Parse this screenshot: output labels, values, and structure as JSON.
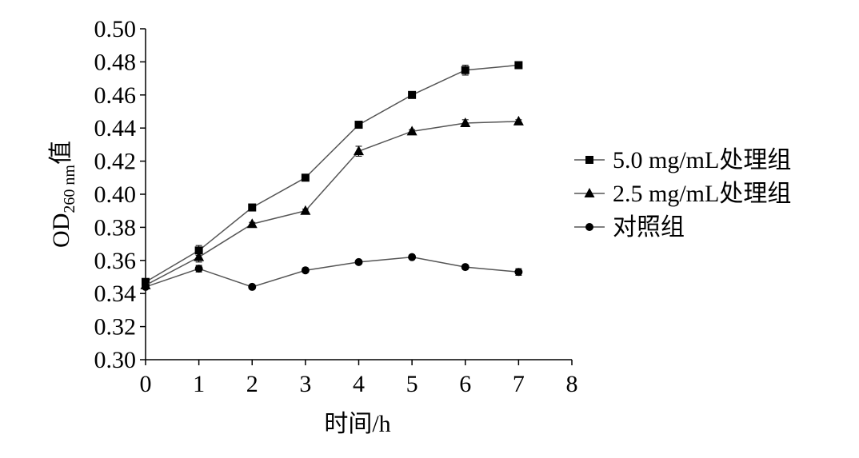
{
  "chart_data": {
    "type": "line",
    "title": "",
    "xlabel": "时间/h",
    "ylabel": {
      "prefix": "OD",
      "subscript": "260 nm",
      "suffix": "值"
    },
    "xlim": [
      0,
      8
    ],
    "ylim": [
      0.3,
      0.5
    ],
    "x_ticks": [
      "0",
      "1",
      "2",
      "3",
      "4",
      "5",
      "6",
      "7",
      "8"
    ],
    "y_ticks": [
      "0.30",
      "0.32",
      "0.34",
      "0.36",
      "0.38",
      "0.40",
      "0.42",
      "0.44",
      "0.46",
      "0.48",
      "0.50"
    ],
    "grid": false,
    "legend_position": "right",
    "x": [
      0,
      1,
      2,
      3,
      4,
      5,
      6,
      7
    ],
    "series": [
      {
        "name": "5.0 mg/mL处理组",
        "marker": "square",
        "values": [
          0.347,
          0.366,
          0.392,
          0.41,
          0.442,
          0.46,
          0.475,
          0.478
        ],
        "errors": [
          0.001,
          0.003,
          0.001,
          0.001,
          0.001,
          0.001,
          0.003,
          0.002
        ]
      },
      {
        "name": "2.5 mg/mL处理组",
        "marker": "triangle",
        "values": [
          0.345,
          0.362,
          0.382,
          0.39,
          0.426,
          0.438,
          0.443,
          0.444
        ],
        "errors": [
          0.001,
          0.003,
          0.001,
          0.001,
          0.003,
          0.001,
          0.002,
          0.001
        ]
      },
      {
        "name": "对照组",
        "marker": "circle",
        "values": [
          0.344,
          0.355,
          0.344,
          0.354,
          0.359,
          0.362,
          0.356,
          0.353
        ],
        "errors": [
          0.001,
          0.002,
          0.001,
          0.001,
          0.001,
          0.001,
          0.001,
          0.002
        ]
      }
    ],
    "colors": {
      "line": "#555555",
      "marker": "#000000",
      "axis": "#000000"
    }
  }
}
